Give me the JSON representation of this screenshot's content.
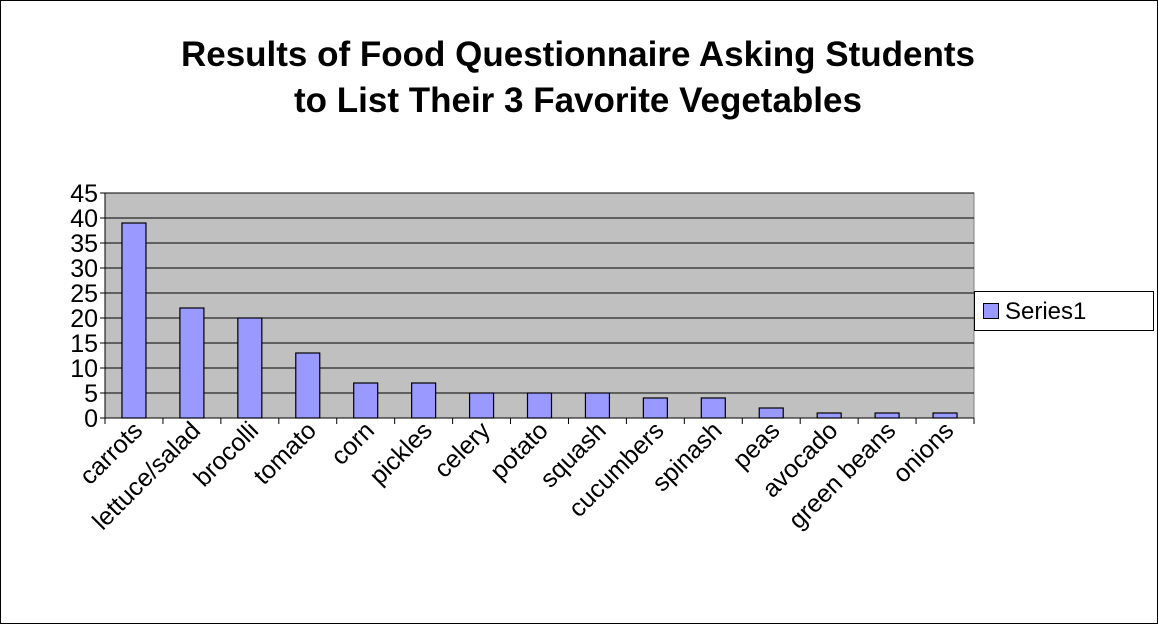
{
  "chart_data": {
    "type": "bar",
    "title": [
      "Results of Food Questionnaire Asking Students",
      "to List Their 3 Favorite Vegetables"
    ],
    "categories": [
      "carrots",
      "lettuce/salad",
      "brocolli",
      "tomato",
      "corn",
      "pickles",
      "celery",
      "potato",
      "squash",
      "cucumbers",
      "spinash",
      "peas",
      "avocado",
      "green beans",
      "onions"
    ],
    "series": [
      {
        "name": "Series1",
        "values": [
          39,
          22,
          20,
          13,
          7,
          7,
          5,
          5,
          5,
          4,
          4,
          2,
          1,
          1,
          1
        ]
      }
    ],
    "ylim": [
      0,
      45
    ],
    "yticks": [
      0,
      5,
      10,
      15,
      20,
      25,
      30,
      35,
      40,
      45
    ],
    "grid": true,
    "legend_position": "right",
    "colors": {
      "bar": "#9999ff",
      "plot_background": "#c0c0c0",
      "gridline": "#000000"
    }
  }
}
